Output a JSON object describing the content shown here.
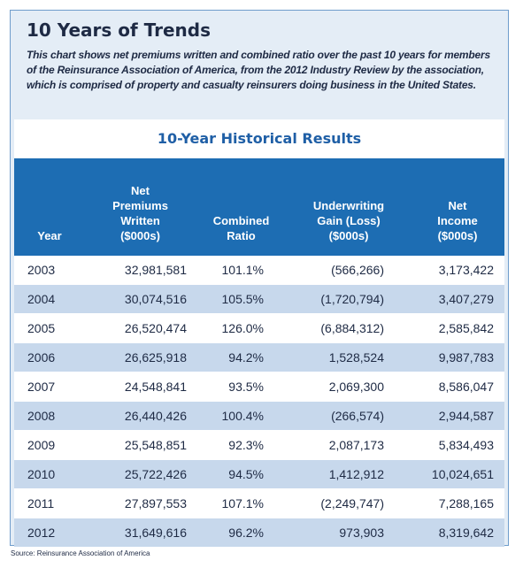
{
  "title": "10 Years of Trends",
  "description": "This chart shows net premiums written and combined ratio over the past 10 years for members of the Reinsurance Association of America, from the 2012 Industry Review by the association, which is comprised of property and casualty reinsurers doing business in the United States.",
  "table": {
    "title": "10-Year Historical Results",
    "columns": [
      "Year",
      "Net\nPremiums\nWritten\n($000s)",
      "Combined\nRatio",
      "Underwriting\nGain (Loss)\n($000s)",
      "Net\nIncome\n($000s)"
    ],
    "rows": [
      [
        "2003",
        "32,981,581",
        "101.1%",
        "(566,266)",
        "3,173,422"
      ],
      [
        "2004",
        "30,074,516",
        "105.5%",
        "(1,720,794)",
        "3,407,279"
      ],
      [
        "2005",
        "26,520,474",
        "126.0%",
        "(6,884,312)",
        "2,585,842"
      ],
      [
        "2006",
        "26,625,918",
        "94.2%",
        "1,528,524",
        "9,987,783"
      ],
      [
        "2007",
        "24,548,841",
        "93.5%",
        "2,069,300",
        "8,586,047"
      ],
      [
        "2008",
        "26,440,426",
        "100.4%",
        "(266,574)",
        "2,944,587"
      ],
      [
        "2009",
        "25,548,851",
        "92.3%",
        "2,087,173",
        "5,834,493"
      ],
      [
        "2010",
        "25,722,426",
        "94.5%",
        "1,412,912",
        "10,024,651"
      ],
      [
        "2011",
        "27,897,553",
        "107.1%",
        "(2,249,747)",
        "7,288,165"
      ],
      [
        "2012",
        "31,649,616",
        "96.2%",
        "973,903",
        "8,319,642"
      ]
    ]
  },
  "source": "Source: Reinsurance Association of America",
  "colors": {
    "header_blue": "#1d6db3",
    "row_stripe": "#c7d8ec",
    "panel_bg": "#e4edf6",
    "table_title": "#1f5fa6"
  }
}
